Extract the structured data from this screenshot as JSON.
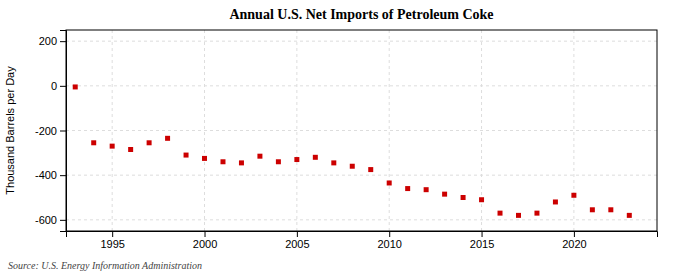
{
  "chart_data": {
    "type": "scatter",
    "title": "Annual U.S. Net Imports of Petroleum Coke",
    "ylabel": "Thousand Barrels per Day",
    "source": "Source: U.S. Energy Information Administration",
    "x": [
      1993,
      1994,
      1995,
      1996,
      1997,
      1998,
      1999,
      2000,
      2001,
      2002,
      2003,
      2004,
      2005,
      2006,
      2007,
      2008,
      2009,
      2010,
      2011,
      2012,
      2013,
      2014,
      2015,
      2016,
      2017,
      2018,
      2019,
      2020,
      2021,
      2022,
      2023
    ],
    "values": [
      -5,
      -255,
      -270,
      -285,
      -255,
      -235,
      -310,
      -325,
      -340,
      -345,
      -315,
      -340,
      -330,
      -320,
      -345,
      -360,
      -375,
      -435,
      -460,
      -465,
      -485,
      -500,
      -510,
      -570,
      -580,
      -570,
      -520,
      -490,
      -555,
      -555,
      -580
    ],
    "color": "#cc0000",
    "marker": "square",
    "xlim": [
      1992.5,
      2024.5
    ],
    "xticks": [
      1995,
      2000,
      2005,
      2010,
      2015,
      2020
    ],
    "ylim": [
      -650,
      250
    ],
    "yticks": [
      -600,
      -400,
      -200,
      0,
      200
    ],
    "grid": true
  }
}
